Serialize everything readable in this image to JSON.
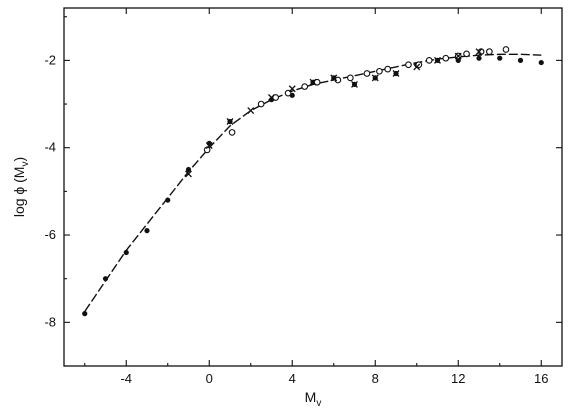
{
  "chart_data": {
    "type": "scatter",
    "title": "",
    "xlabel": "M",
    "xlabel_sub": "v",
    "ylabel": "log  ϕ (M",
    "ylabel_sub": "v",
    "ylabel_tail": ")",
    "xlim": [
      -7.0,
      17.0
    ],
    "ylim": [
      -9.0,
      -0.8
    ],
    "xticks": [
      -4,
      0,
      4,
      8,
      12,
      16
    ],
    "xtick_labels": [
      "-4",
      "0",
      "4",
      "8",
      "12",
      "16"
    ],
    "yticks": [
      -2,
      -4,
      -6,
      -8
    ],
    "ytick_labels": [
      "-2",
      "-4",
      "-6",
      "-8"
    ],
    "grid": false,
    "series": [
      {
        "marker": "filled-circle",
        "x": [
          -6,
          -5,
          -4,
          -3,
          -2,
          -1,
          0,
          1,
          3,
          4,
          5,
          6,
          7,
          8,
          9,
          10,
          11,
          12,
          13,
          14,
          15,
          16
        ],
        "y": [
          -7.8,
          -7.0,
          -6.4,
          -5.9,
          -5.2,
          -4.5,
          -3.9,
          -3.4,
          -2.9,
          -2.8,
          -2.5,
          -2.4,
          -2.55,
          -2.4,
          -2.3,
          -2.1,
          -2.0,
          -2.0,
          -1.95,
          -1.95,
          -2.0,
          -2.05
        ]
      },
      {
        "marker": "open-circle",
        "x": [
          -0.1,
          1.1,
          2.5,
          3.2,
          3.8,
          4.6,
          5.2,
          6.2,
          6.8,
          7.6,
          8.2,
          8.6,
          9.6,
          10.1,
          10.6,
          11.4,
          12.0,
          12.4,
          13.1,
          13.5,
          14.3
        ],
        "y": [
          -4.05,
          -3.65,
          -3.0,
          -2.85,
          -2.75,
          -2.6,
          -2.5,
          -2.45,
          -2.4,
          -2.3,
          -2.25,
          -2.2,
          -2.1,
          -2.1,
          -2.0,
          -1.95,
          -1.9,
          -1.85,
          -1.8,
          -1.8,
          -1.75
        ]
      },
      {
        "marker": "cross",
        "x": [
          -1,
          0,
          1,
          2,
          3,
          4,
          5,
          6,
          7,
          8,
          9,
          10,
          11,
          12,
          13
        ],
        "y": [
          -4.6,
          -3.95,
          -3.4,
          -3.15,
          -2.85,
          -2.65,
          -2.5,
          -2.4,
          -2.55,
          -2.4,
          -2.3,
          -2.15,
          -2.0,
          -1.9,
          -1.8
        ]
      }
    ],
    "fit_curve": {
      "x": [
        -6,
        -5,
        -4,
        -3,
        -2,
        -1,
        0,
        1,
        2,
        3,
        4,
        5,
        6,
        7,
        8,
        9,
        10,
        11,
        12,
        13,
        14,
        15,
        16
      ],
      "y": [
        -7.75,
        -7.05,
        -6.35,
        -5.75,
        -5.15,
        -4.55,
        -4.0,
        -3.5,
        -3.15,
        -2.9,
        -2.7,
        -2.55,
        -2.45,
        -2.35,
        -2.25,
        -2.15,
        -2.05,
        -1.97,
        -1.92,
        -1.88,
        -1.86,
        -1.86,
        -1.88
      ]
    }
  }
}
